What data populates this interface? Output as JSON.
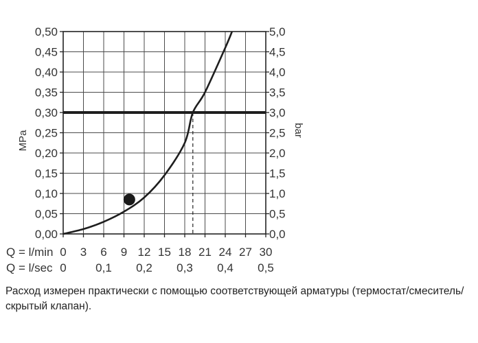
{
  "chart_data": {
    "type": "line",
    "y_left": {
      "label": "MPa",
      "ticks": [
        "0,00",
        "0,05",
        "0,10",
        "0,15",
        "0,20",
        "0,25",
        "0,30",
        "0,35",
        "0,40",
        "0,45",
        "0,50"
      ],
      "range": [
        0,
        0.5
      ]
    },
    "y_right": {
      "label": "bar",
      "ticks": [
        "0,0",
        "0,5",
        "1,0",
        "1,5",
        "2,0",
        "2,5",
        "3,0",
        "3,5",
        "4,0",
        "4,5",
        "5,0"
      ],
      "range": [
        0,
        5
      ]
    },
    "x_primary": {
      "label": "Q = l/min",
      "ticks": [
        "0",
        "3",
        "6",
        "9",
        "12",
        "15",
        "18",
        "21",
        "24",
        "27",
        "30"
      ],
      "range": [
        0,
        30
      ]
    },
    "x_secondary": {
      "label": "Q = l/sec",
      "ticks": [
        "0",
        "0,1",
        "0,2",
        "0,3",
        "0,4",
        "0,5"
      ]
    },
    "grid": true,
    "series": [
      {
        "x": [
          0,
          3,
          6,
          9,
          12,
          15,
          18,
          19.2,
          21,
          24,
          25
        ],
        "y": [
          0,
          0.012,
          0.03,
          0.055,
          0.09,
          0.145,
          0.225,
          0.3,
          0.35,
          0.46,
          0.5
        ]
      }
    ],
    "reference_line": {
      "y": 0.3,
      "x_intersection": 19.2
    },
    "marker": {
      "x": 9.8,
      "y": 0.085
    }
  },
  "caption": "Расход измерен практически с помощью соответствующей арматуры (термостат/смеситель/скрытый клапан)."
}
